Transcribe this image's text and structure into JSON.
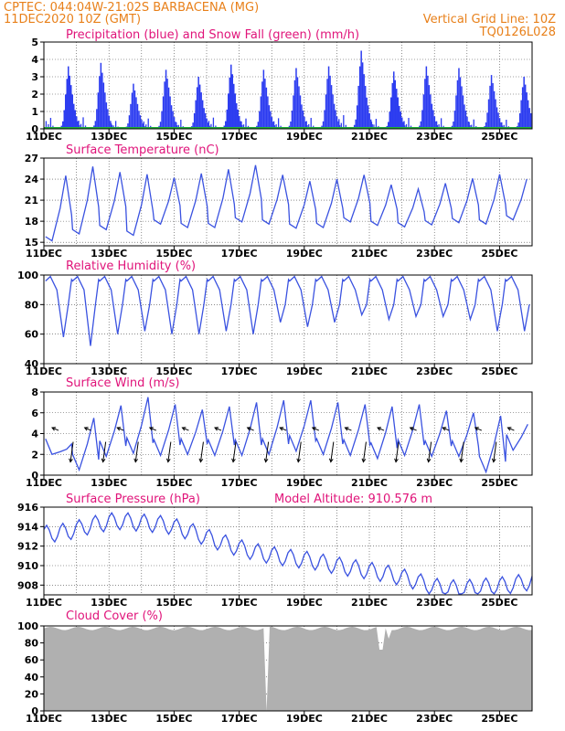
{
  "header": {
    "line1_left": "CPTEC:   044:04W-21:02S   BARBACENA (MG)",
    "line2_left": "11DEC2020 10Z (GMT)",
    "line2_right": "Vertical Grid Line: 10Z",
    "line3_right": "TQ0126L028"
  },
  "colors": {
    "header": "#e8801a",
    "title": "#e0147a",
    "line": "#3a52e0",
    "precip": "#2c3cf0",
    "snow": "#1fae3a",
    "cloud": "#b0b0b0"
  },
  "chart_data": [
    {
      "id": "precip",
      "type": "bar",
      "title": "Precipitation (blue) and Snow Fall (green) (mm/h)",
      "ylim": [
        0,
        5
      ],
      "yticks": [
        0,
        1,
        2,
        3,
        4,
        5
      ],
      "day_ticks": [
        "11DEC",
        "13DEC",
        "15DEC",
        "17DEC",
        "19DEC",
        "21DEC",
        "23DEC",
        "25DEC"
      ],
      "series": [
        {
          "name": "Precipitation",
          "values": [
            3.6,
            3.8,
            2.6,
            3.4,
            3.0,
            3.7,
            3.4,
            3.5,
            3.6,
            4.5,
            3.3,
            3.6,
            3.5,
            3.1,
            3.0
          ]
        },
        {
          "name": "Snow Fall",
          "values": [
            0
          ]
        }
      ]
    },
    {
      "id": "temp",
      "type": "line",
      "title": "Surface Temperature (nC)",
      "ylim": [
        14.5,
        27
      ],
      "yticks": [
        15,
        18,
        21,
        24,
        27
      ],
      "day_ticks": [
        "11DEC",
        "13DEC",
        "15DEC",
        "17DEC",
        "19DEC",
        "21DEC",
        "23DEC",
        "25DEC"
      ],
      "series": [
        {
          "name": "Temperature",
          "maxima": [
            24.5,
            25.8,
            25.0,
            24.7,
            24.2,
            24.8,
            25.4,
            26.0,
            24.6,
            23.7,
            24.0,
            24.6,
            23.2,
            22.6,
            23.4,
            24.1,
            24.7,
            24.0
          ],
          "minima": [
            15.2,
            16.2,
            16.8,
            16.0,
            17.6,
            17.1,
            17.1,
            17.9,
            17.6,
            17.0,
            17.1,
            17.9,
            17.4,
            17.2,
            17.5,
            17.8,
            17.6,
            18.2
          ]
        }
      ]
    },
    {
      "id": "rh",
      "type": "line",
      "title": "Relative Humidity (%)",
      "ylim": [
        40,
        100
      ],
      "yticks": [
        40,
        60,
        80,
        100
      ],
      "day_ticks": [
        "11DEC",
        "13DEC",
        "15DEC",
        "17DEC",
        "19DEC",
        "21DEC",
        "23DEC",
        "25DEC"
      ],
      "series": [
        {
          "name": "Relative Humidity",
          "minima": [
            58,
            52,
            60,
            62,
            60,
            60,
            62,
            60,
            68,
            65,
            68,
            73,
            70,
            72,
            72,
            70,
            62,
            62
          ]
        }
      ]
    },
    {
      "id": "wind",
      "type": "line",
      "title": "Surface Wind (m/s)",
      "ylim": [
        0,
        8
      ],
      "yticks": [
        0,
        2,
        4,
        6,
        8
      ],
      "day_ticks": [
        "11DEC",
        "13DEC",
        "15DEC",
        "17DEC",
        "19DEC",
        "21DEC",
        "23DEC",
        "25DEC"
      ],
      "series": [
        {
          "name": "Wind Speed",
          "maxima": [
            2.5,
            5.5,
            6.7,
            7.5,
            6.8,
            6.3,
            6.6,
            7.0,
            7.2,
            7.2,
            7.0,
            6.8,
            6.6,
            6.8,
            6.2,
            6.0,
            5.7,
            4.9
          ],
          "minima": [
            2.0,
            0.5,
            1.8,
            2.1,
            1.9,
            2.0,
            1.9,
            1.9,
            2.0,
            2.3,
            2.0,
            1.9,
            1.6,
            1.9,
            1.8,
            1.8,
            0.3,
            2.4
          ]
        }
      ]
    },
    {
      "id": "pres",
      "type": "line",
      "title": "Surface Pressure (hPa)",
      "annotation": "Model Altitude: 910.576 m",
      "ylim": [
        907,
        916
      ],
      "yticks": [
        908,
        910,
        912,
        914,
        916
      ],
      "day_ticks": [
        "11DEC",
        "13DEC",
        "15DEC",
        "17DEC",
        "19DEC",
        "21DEC",
        "23DEC",
        "25DEC"
      ],
      "series": [
        {
          "name": "Pressure",
          "values": [
            913.2,
            913.5,
            914.2,
            914.6,
            914.4,
            914.2,
            913.5,
            912.6,
            911.8,
            911.2,
            910.8,
            910.5,
            910.0,
            909.6,
            909.2,
            908.6,
            907.8,
            907.6,
            907.8,
            908.0,
            908.4
          ]
        }
      ]
    },
    {
      "id": "cloud",
      "type": "area",
      "title": "Cloud Cover (%)",
      "ylim": [
        0,
        100
      ],
      "yticks": [
        0,
        20,
        40,
        60,
        80,
        100
      ],
      "day_ticks": [
        "11DEC",
        "13DEC",
        "15DEC",
        "17DEC",
        "19DEC",
        "21DEC",
        "23DEC",
        "25DEC"
      ],
      "series": [
        {
          "name": "Cloud Cover",
          "typical": 97
        }
      ]
    }
  ]
}
